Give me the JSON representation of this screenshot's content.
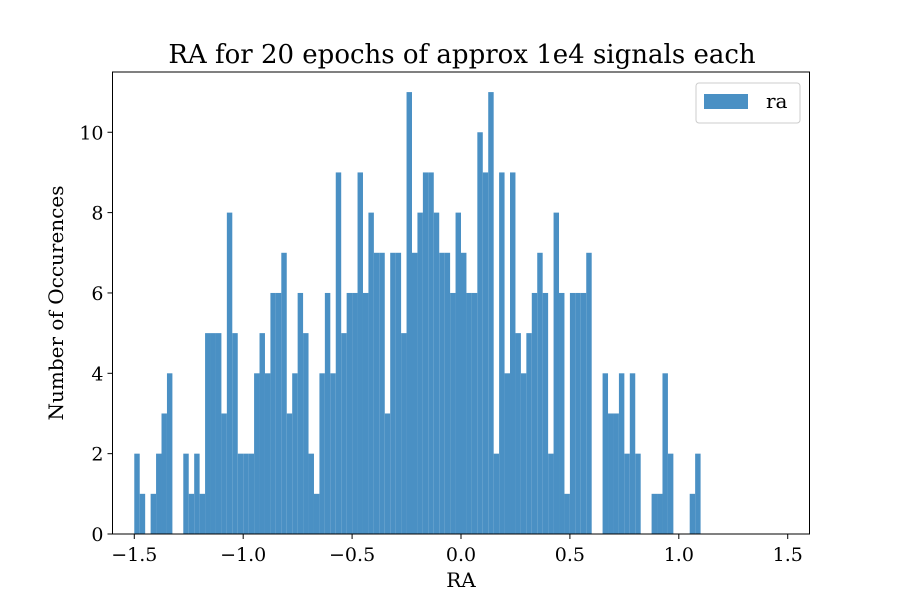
{
  "chart_data": {
    "type": "bar",
    "title": "RA for 20 epochs of approx 1e4 signals each",
    "xlabel": "RA",
    "ylabel": "Number of Occurences",
    "xlim": [
      -1.6,
      1.6
    ],
    "ylim": [
      0,
      11.5
    ],
    "xticks": [
      -1.5,
      -1.0,
      -0.5,
      0.0,
      0.5,
      1.0,
      1.5
    ],
    "xtick_labels": [
      "−1.5",
      "−1.0",
      "−0.5",
      "0.0",
      "0.5",
      "1.0",
      "1.5"
    ],
    "yticks": [
      0,
      2,
      4,
      6,
      8,
      10
    ],
    "ytick_labels": [
      "0",
      "2",
      "4",
      "6",
      "8",
      "10"
    ],
    "grid": false,
    "legend": {
      "position": "top-right",
      "entries": [
        "ra"
      ]
    },
    "bar_color": "#4a90c4",
    "bin_range": [
      -1.5,
      1.5
    ],
    "bin_count": 120,
    "series": [
      {
        "name": "ra",
        "values": [
          2,
          1,
          0,
          1,
          2,
          3,
          4,
          0,
          0,
          2,
          1,
          2,
          1,
          5,
          5,
          5,
          3,
          8,
          5,
          2,
          2,
          2,
          4,
          5,
          4,
          6,
          6,
          7,
          3,
          4,
          6,
          5,
          2,
          1,
          4,
          6,
          4,
          9,
          5,
          6,
          6,
          9,
          6,
          8,
          7,
          7,
          3,
          7,
          7,
          5,
          11,
          7,
          8,
          9,
          9,
          8,
          7,
          7,
          6,
          8,
          7,
          6,
          6,
          10,
          9,
          11,
          2,
          9,
          4,
          9,
          5,
          4,
          5,
          6,
          7,
          6,
          2,
          8,
          6,
          1,
          6,
          6,
          6,
          7,
          0,
          0,
          4,
          3,
          3,
          4,
          2,
          4,
          2,
          0,
          0,
          1,
          1,
          4,
          2,
          0,
          0,
          0,
          1,
          2,
          0,
          0,
          0,
          0,
          0,
          0,
          0,
          0,
          0,
          0,
          0,
          0,
          0,
          0,
          0,
          0
        ]
      }
    ]
  }
}
